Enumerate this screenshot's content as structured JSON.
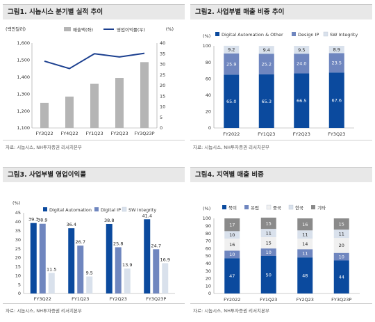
{
  "source_text": "자료: 시놉시스, NH투자증권 리서치본부",
  "colors": {
    "navy": "#1b3f8f",
    "blue": "#0b4a9e",
    "mid": "#6f86bf",
    "light": "#d9e1ec",
    "gray": "#b5b5b5",
    "darkgray": "#8a8a8a",
    "pale": "#f0f0f0"
  },
  "chart_data": [
    {
      "id": "chart1",
      "type": "bar+line",
      "title": "그림1. 시놉시스 분기별 실적 추이",
      "ylabel_left": "(백만달러)",
      "ylabel_right": "(%)",
      "categories": [
        "FY3Q22",
        "FY4Q22",
        "FY1Q23",
        "FY2Q23",
        "FY3Q23P"
      ],
      "series": [
        {
          "name": "매출액(좌)",
          "type": "bar",
          "axis": "left",
          "color": "#b5b5b5",
          "values": [
            1248,
            1285,
            1360,
            1395,
            1488
          ]
        },
        {
          "name": "영업이익률(우)",
          "type": "line",
          "axis": "right",
          "color": "#1b3f8f",
          "values": [
            31.5,
            28.0,
            35.0,
            33.5,
            35.2
          ]
        }
      ],
      "ylim_left": [
        1100,
        1600
      ],
      "yticks_left": [
        1100,
        1200,
        1300,
        1400,
        1500,
        1600
      ],
      "ytick_labels_left": [
        "1,100",
        "1,200",
        "1,300",
        "1,400",
        "1,500",
        "1,600"
      ],
      "ylim_right": [
        0,
        40
      ],
      "yticks_right": [
        0,
        5,
        10,
        15,
        20,
        25,
        30,
        35,
        40
      ]
    },
    {
      "id": "chart2",
      "type": "stacked-bar",
      "title": "그림2. 사업부별 매출 비중 추이",
      "ylabel": "(%)",
      "categories": [
        "FY2022",
        "FY1Q23",
        "FY2Q23",
        "FY3Q23"
      ],
      "series": [
        {
          "name": "Digital Automation & Other",
          "color": "#0b4a9e",
          "values": [
            65.0,
            65.3,
            66.5,
            67.6
          ],
          "labels": [
            "65.0",
            "65.3",
            "66.5",
            "67.6"
          ]
        },
        {
          "name": "Design IP",
          "color": "#6f86bf",
          "values": [
            25.9,
            25.2,
            24.0,
            23.5
          ],
          "labels": [
            "25.9",
            "25.2",
            "24.0",
            "23.5"
          ]
        },
        {
          "name": "SW Integrity",
          "color": "#d9e1ec",
          "values": [
            9.2,
            9.4,
            9.5,
            8.9
          ],
          "labels": [
            "9.2",
            "9.4",
            "9.5",
            "8.9"
          ]
        }
      ],
      "ylim": [
        0,
        100
      ],
      "yticks": [
        0,
        20,
        40,
        60,
        80,
        100
      ]
    },
    {
      "id": "chart3",
      "type": "bar",
      "title": "그림3. 사업부별 영업이익률",
      "ylabel": "(%)",
      "categories": [
        "FY3Q22",
        "FY1Q23",
        "FY2Q23",
        "FY3Q23P"
      ],
      "series": [
        {
          "name": "Digital Automation",
          "color": "#0b4a9e",
          "values": [
            39.3,
            36.4,
            38.8,
            41.4
          ],
          "labels": [
            "39.3",
            "36.4",
            "38.8",
            "41.4"
          ]
        },
        {
          "name": "Digital IP",
          "color": "#6f86bf",
          "values": [
            38.9,
            26.7,
            25.8,
            24.7
          ],
          "labels": [
            "38.9",
            "26.7",
            "25.8",
            "24.7"
          ]
        },
        {
          "name": "SW Integrity",
          "color": "#d9e1ec",
          "values": [
            11.5,
            9.5,
            13.9,
            16.9
          ],
          "labels": [
            "11.5",
            "9.5",
            "13.9",
            "16.9"
          ]
        }
      ],
      "ylim": [
        0,
        45
      ],
      "yticks": [
        0,
        5,
        10,
        15,
        20,
        25,
        30,
        35,
        40,
        45
      ]
    },
    {
      "id": "chart4",
      "type": "stacked-bar",
      "title": "그림4. 지역별 매출 비중",
      "ylabel": "(%)",
      "categories": [
        "FY2022",
        "FY1Q23",
        "FY2Q23",
        "FY3Q23P"
      ],
      "series": [
        {
          "name": "북미",
          "color": "#0b4a9e",
          "values": [
            47,
            50,
            48,
            44
          ],
          "labels": [
            "47",
            "50",
            "48",
            "44"
          ]
        },
        {
          "name": "유럽",
          "color": "#6f86bf",
          "values": [
            10,
            10,
            11,
            10
          ],
          "labels": [
            "10",
            "10",
            "11",
            "10"
          ]
        },
        {
          "name": "중국",
          "color": "#f0f0f0",
          "values": [
            16,
            15,
            14,
            20
          ],
          "labels": [
            "16",
            "15",
            "14",
            "20"
          ]
        },
        {
          "name": "한국",
          "color": "#d9e1ec",
          "values": [
            10,
            11,
            11,
            11
          ],
          "labels": [
            "10",
            "11",
            "11",
            "11"
          ]
        },
        {
          "name": "기타",
          "color": "#8a8a8a",
          "values": [
            17,
            15,
            16,
            15
          ],
          "labels": [
            "17",
            "15",
            "16",
            "15"
          ]
        }
      ],
      "ylim": [
        0,
        100
      ],
      "yticks": [
        0,
        10,
        20,
        30,
        40,
        50,
        60,
        70,
        80,
        90,
        100
      ]
    }
  ]
}
